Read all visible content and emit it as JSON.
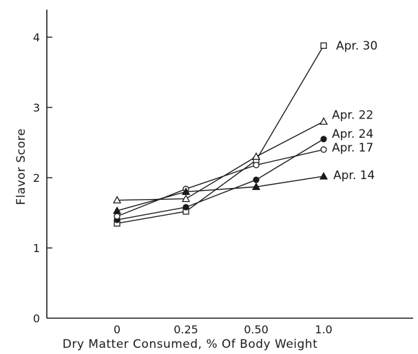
{
  "chart_data": {
    "type": "line",
    "title": "",
    "xlabel": "Dry Matter Consumed, % Of Body Weight",
    "ylabel": "Flavor Score",
    "x": [
      0,
      0.25,
      0.5,
      1.0
    ],
    "x_tick_labels": [
      "0",
      "0.25",
      "0.50",
      "1.0"
    ],
    "y_ticks": [
      0,
      1,
      2,
      3,
      4
    ],
    "y_tick_labels": [
      "0",
      "1",
      "2",
      "3",
      "4"
    ],
    "ylim": [
      0,
      4.3
    ],
    "grid": false,
    "legend": "direct labels at line ends",
    "series": [
      {
        "name": "Apr. 30",
        "marker": "open-square",
        "values": [
          1.35,
          1.52,
          2.25,
          3.88
        ]
      },
      {
        "name": "Apr. 22",
        "marker": "open-triangle",
        "values": [
          1.68,
          1.7,
          2.3,
          2.8
        ]
      },
      {
        "name": "Apr. 24",
        "marker": "filled-circle",
        "values": [
          1.4,
          1.58,
          1.97,
          2.55
        ]
      },
      {
        "name": "Apr. 17",
        "marker": "open-circle",
        "values": [
          1.45,
          1.84,
          2.18,
          2.4
        ]
      },
      {
        "name": "Apr. 14",
        "marker": "filled-triangle",
        "values": [
          1.53,
          1.8,
          1.87,
          2.02
        ]
      }
    ]
  }
}
